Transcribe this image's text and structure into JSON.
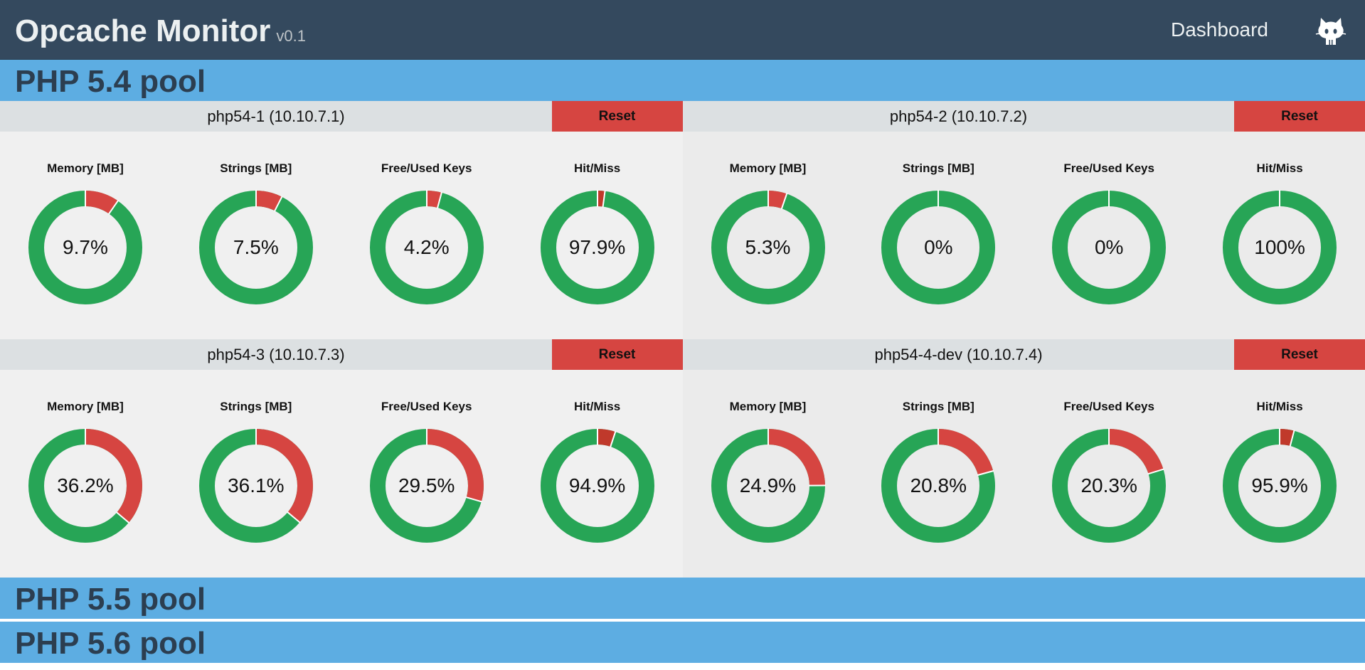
{
  "app": {
    "title": "Opcache Monitor",
    "version": "v0.1",
    "nav_dashboard": "Dashboard",
    "github_icon": "github-octocat-icon"
  },
  "colors": {
    "navbar": "#34495e",
    "pool_header": "#5dade2",
    "used": "#d64541",
    "used_dark": "#c0392b",
    "free": "#27a556",
    "reset": "#d64541"
  },
  "chart_labels": [
    "Memory [MB]",
    "Strings [MB]",
    "Free/Used Keys",
    "Hit/Miss"
  ],
  "reset_label": "Reset",
  "pools": [
    {
      "title": "PHP 5.4 pool",
      "servers": [
        {
          "name": "php54-1 (10.10.7.1)",
          "charts": [
            {
              "label": "Memory [MB]",
              "value_text": "9.7%",
              "red_fraction": 0.097
            },
            {
              "label": "Strings [MB]",
              "value_text": "7.5%",
              "red_fraction": 0.075
            },
            {
              "label": "Free/Used Keys",
              "value_text": "4.2%",
              "red_fraction": 0.042
            },
            {
              "label": "Hit/Miss",
              "value_text": "97.9%",
              "red_fraction": 0.021,
              "dark": true
            }
          ]
        },
        {
          "name": "php54-2 (10.10.7.2)",
          "charts": [
            {
              "label": "Memory [MB]",
              "value_text": "5.3%",
              "red_fraction": 0.053
            },
            {
              "label": "Strings [MB]",
              "value_text": "0%",
              "red_fraction": 0
            },
            {
              "label": "Free/Used Keys",
              "value_text": "0%",
              "red_fraction": 0
            },
            {
              "label": "Hit/Miss",
              "value_text": "100%",
              "red_fraction": 0
            }
          ]
        },
        {
          "name": "php54-3 (10.10.7.3)",
          "charts": [
            {
              "label": "Memory [MB]",
              "value_text": "36.2%",
              "red_fraction": 0.362
            },
            {
              "label": "Strings [MB]",
              "value_text": "36.1%",
              "red_fraction": 0.361
            },
            {
              "label": "Free/Used Keys",
              "value_text": "29.5%",
              "red_fraction": 0.295
            },
            {
              "label": "Hit/Miss",
              "value_text": "94.9%",
              "red_fraction": 0.051,
              "dark": true
            }
          ]
        },
        {
          "name": "php54-4-dev (10.10.7.4)",
          "charts": [
            {
              "label": "Memory [MB]",
              "value_text": "24.9%",
              "red_fraction": 0.249
            },
            {
              "label": "Strings [MB]",
              "value_text": "20.8%",
              "red_fraction": 0.208
            },
            {
              "label": "Free/Used Keys",
              "value_text": "20.3%",
              "red_fraction": 0.203
            },
            {
              "label": "Hit/Miss",
              "value_text": "95.9%",
              "red_fraction": 0.041,
              "dark": true
            }
          ]
        }
      ]
    },
    {
      "title": "PHP 5.5 pool",
      "servers": []
    },
    {
      "title": "PHP 5.6 pool",
      "servers": []
    }
  ]
}
